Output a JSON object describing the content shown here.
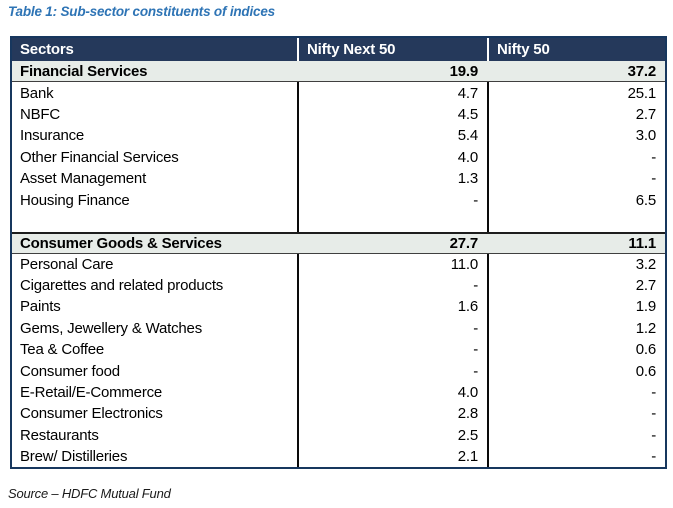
{
  "caption": "Table 1: Sub-sector constituents of indices",
  "source": "Source – HDFC Mutual  Fund",
  "colors": {
    "caption_blue": "#2E74B5",
    "header_bg": "#25395B",
    "header_text": "#FFFFFF",
    "section_row_bg": "#E7ECE8",
    "outer_border": "#17375E",
    "column_divider": "#0A0A0A"
  },
  "table": {
    "headers": [
      "Sectors",
      "Nifty Next 50",
      "Nifty 50"
    ],
    "rows": [
      {
        "type": "section",
        "label": "Financial Services",
        "next50": "19.9",
        "nifty50": "37.2"
      },
      {
        "type": "item",
        "label": "Bank",
        "next50": "4.7",
        "nifty50": "25.1"
      },
      {
        "type": "item",
        "label": "NBFC",
        "next50": "4.5",
        "nifty50": "2.7"
      },
      {
        "type": "item",
        "label": "Insurance",
        "next50": "5.4",
        "nifty50": "3.0"
      },
      {
        "type": "item",
        "label": "Other Financial Services",
        "next50": "4.0",
        "nifty50": "-"
      },
      {
        "type": "item",
        "label": "Asset Management",
        "next50": "1.3",
        "nifty50": "-"
      },
      {
        "type": "item",
        "label": "Housing Finance",
        "next50": "-",
        "nifty50": "6.5"
      },
      {
        "type": "spacer",
        "label": "",
        "next50": "",
        "nifty50": ""
      },
      {
        "type": "section",
        "label": "Consumer Goods & Services",
        "next50": "27.7",
        "nifty50": "11.1"
      },
      {
        "type": "item",
        "label": "Personal Care",
        "next50": "11.0",
        "nifty50": "3.2"
      },
      {
        "type": "item",
        "label": "Cigarettes and related products",
        "next50": "-",
        "nifty50": "2.7"
      },
      {
        "type": "item",
        "label": "Paints",
        "next50": "1.6",
        "nifty50": "1.9"
      },
      {
        "type": "item",
        "label": "Gems, Jewellery & Watches",
        "next50": "-",
        "nifty50": "1.2"
      },
      {
        "type": "item",
        "label": "Tea & Coffee",
        "next50": "-",
        "nifty50": "0.6"
      },
      {
        "type": "item",
        "label": "Consumer food",
        "next50": "-",
        "nifty50": "0.6"
      },
      {
        "type": "item",
        "label": "E-Retail/E-Commerce",
        "next50": "4.0",
        "nifty50": "-"
      },
      {
        "type": "item",
        "label": "Consumer Electronics",
        "next50": "2.8",
        "nifty50": "-"
      },
      {
        "type": "item",
        "label": "Restaurants",
        "next50": "2.5",
        "nifty50": "-"
      },
      {
        "type": "item",
        "label": "Brew/ Distilleries",
        "next50": "2.1",
        "nifty50": "-"
      }
    ]
  }
}
